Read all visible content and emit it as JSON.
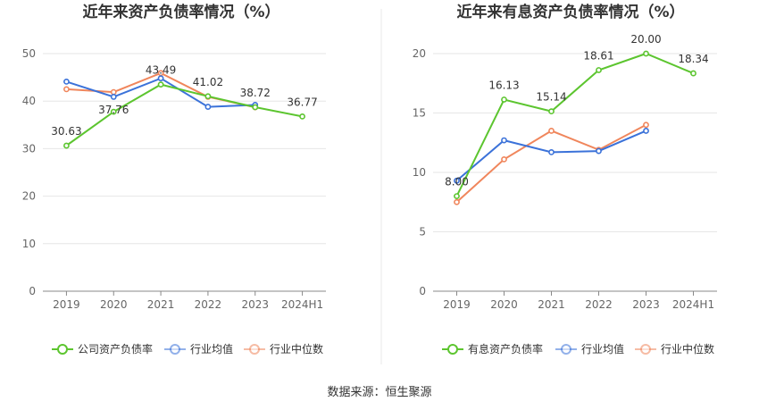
{
  "source_label": "数据来源：恒生聚源",
  "chart_data": [
    {
      "type": "line",
      "title": "近年来资产负债率情况（%）",
      "categories": [
        "2019",
        "2020",
        "2021",
        "2022",
        "2023",
        "2024H1"
      ],
      "ylim": [
        0,
        50
      ],
      "yticks": [
        0,
        10,
        20,
        30,
        40,
        50
      ],
      "series": [
        {
          "name": "公司资产负债率",
          "color": "#5cc52f",
          "values": [
            30.63,
            37.76,
            43.49,
            41.02,
            38.72,
            36.77
          ],
          "labels": [
            "30.63",
            "37.76",
            "43.49",
            "41.02",
            "38.72",
            "36.77"
          ]
        },
        {
          "name": "行业均值",
          "color": "#3b72d9",
          "values": [
            44.1,
            40.9,
            44.8,
            38.8,
            39.2,
            null
          ]
        },
        {
          "name": "行业中位数",
          "color": "#f0865c",
          "values": [
            42.5,
            41.9,
            45.9,
            40.9,
            38.7,
            null
          ]
        }
      ]
    },
    {
      "type": "line",
      "title": "近年来有息资产负债率情况（%）",
      "categories": [
        "2019",
        "2020",
        "2021",
        "2022",
        "2023",
        "2024H1"
      ],
      "ylim": [
        0,
        20
      ],
      "yticks": [
        0,
        5,
        10,
        15,
        20
      ],
      "series": [
        {
          "name": "有息资产负债率",
          "color": "#5cc52f",
          "values": [
            8.0,
            16.13,
            15.14,
            18.61,
            20.0,
            18.34
          ],
          "labels": [
            "8.00",
            "16.13",
            "15.14",
            "18.61",
            "20.00",
            "18.34"
          ]
        },
        {
          "name": "行业均值",
          "color": "#3b72d9",
          "values": [
            9.3,
            12.7,
            11.7,
            11.8,
            13.5,
            null
          ]
        },
        {
          "name": "行业中位数",
          "color": "#f0865c",
          "values": [
            7.5,
            11.1,
            13.5,
            11.9,
            14.0,
            null
          ]
        }
      ]
    }
  ]
}
